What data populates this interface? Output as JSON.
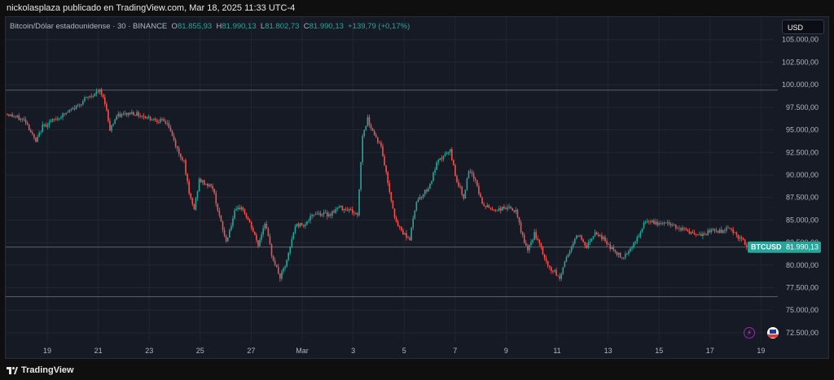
{
  "header": {
    "attribution": "nickolasplaza publicado en TradingView.com, Mar 18, 2025 11:33 UTC-4"
  },
  "legend": {
    "symbol": "Bitcoin/Dólar estadounidense · 30 · BINANCE",
    "o_label": "O",
    "o_value": "81.855,93",
    "h_label": "H",
    "h_value": "81.990,13",
    "l_label": "L",
    "l_value": "81.802,73",
    "c_label": "C",
    "c_value": "81.990,13",
    "change": "+139,79 (+0,17%)"
  },
  "currency_button": "USD",
  "price_tag": {
    "symbol": "BTCUSD",
    "value": "81.990,13"
  },
  "footer": {
    "brand": "TradingView"
  },
  "icons": [
    "flash-icon",
    "us-flag-event-icon",
    "tradingview-logo-icon"
  ],
  "colors": {
    "up": "#26a69a",
    "down": "#ef5350",
    "background": "#161a25",
    "grid": "#232632",
    "axis_text": "#b2b5be"
  },
  "chart_data": {
    "type": "candlestick",
    "title": "",
    "xlabel": "",
    "ylabel": "",
    "ylim": [
      71500,
      107500
    ],
    "x_tick_labels": [
      "19",
      "21",
      "23",
      "25",
      "27",
      "Mar",
      "3",
      "5",
      "7",
      "9",
      "11",
      "13",
      "15",
      "17",
      "19"
    ],
    "y_tick_values": [
      72500,
      75000,
      77500,
      80000,
      82500,
      85000,
      87500,
      90000,
      92500,
      95000,
      97500,
      100000,
      102500,
      105000
    ],
    "y_tick_labels": [
      "72.500,00",
      "75.000,00",
      "77.500,00",
      "80.000,00",
      "82.500,00",
      "85.000,00",
      "87.500,00",
      "90.000,00",
      "92.500,00",
      "95.000,00",
      "97.500,00",
      "100.000,00",
      "102.500,00",
      "105.000,00"
    ],
    "horizontal_lines": [
      99400,
      76500,
      82000
    ],
    "last_close": 81990.13,
    "price_path": [
      [
        0,
        96800
      ],
      [
        1.2,
        96000
      ],
      [
        1.8,
        93600
      ],
      [
        2.2,
        95400
      ],
      [
        3.0,
        96200
      ],
      [
        4.0,
        97300
      ],
      [
        4.8,
        98500
      ],
      [
        5.6,
        99300
      ],
      [
        5.9,
        98100
      ],
      [
        6.2,
        95100
      ],
      [
        6.6,
        96500
      ],
      [
        7.5,
        96900
      ],
      [
        8.6,
        96300
      ],
      [
        9.6,
        95800
      ],
      [
        10.3,
        92300
      ],
      [
        10.6,
        91600
      ],
      [
        10.9,
        87800
      ],
      [
        11.2,
        86200
      ],
      [
        11.5,
        89400
      ],
      [
        12.3,
        88600
      ],
      [
        12.8,
        84600
      ],
      [
        13.1,
        82600
      ],
      [
        13.6,
        85800
      ],
      [
        14.0,
        86500
      ],
      [
        14.6,
        84200
      ],
      [
        15.0,
        82200
      ],
      [
        15.4,
        84800
      ],
      [
        15.8,
        81200
      ],
      [
        16.3,
        78600
      ],
      [
        16.7,
        80400
      ],
      [
        17.2,
        84400
      ],
      [
        17.8,
        84600
      ],
      [
        18.4,
        85800
      ],
      [
        19.2,
        85600
      ],
      [
        19.8,
        86400
      ],
      [
        20.4,
        86200
      ],
      [
        20.9,
        85500
      ],
      [
        21.2,
        94400
      ],
      [
        21.5,
        96200
      ],
      [
        21.9,
        94500
      ],
      [
        22.3,
        93100
      ],
      [
        22.8,
        88200
      ],
      [
        23.2,
        84600
      ],
      [
        23.6,
        83600
      ],
      [
        24.0,
        82900
      ],
      [
        24.4,
        87200
      ],
      [
        24.8,
        87900
      ],
      [
        25.2,
        88900
      ],
      [
        25.6,
        91200
      ],
      [
        26.0,
        92100
      ],
      [
        26.4,
        92600
      ],
      [
        26.8,
        89300
      ],
      [
        27.2,
        87600
      ],
      [
        27.5,
        90300
      ],
      [
        27.9,
        89500
      ],
      [
        28.3,
        86700
      ],
      [
        29.0,
        86100
      ],
      [
        29.8,
        86400
      ],
      [
        30.3,
        85900
      ],
      [
        30.6,
        83800
      ],
      [
        31.0,
        81500
      ],
      [
        31.4,
        83500
      ],
      [
        31.8,
        81800
      ],
      [
        32.2,
        79800
      ],
      [
        32.6,
        79200
      ],
      [
        32.9,
        78500
      ],
      [
        33.2,
        80400
      ],
      [
        33.6,
        82100
      ],
      [
        34.0,
        83400
      ],
      [
        34.5,
        82100
      ],
      [
        35.0,
        83700
      ],
      [
        35.5,
        82900
      ],
      [
        36.0,
        81800
      ],
      [
        36.6,
        80800
      ],
      [
        37.1,
        81900
      ],
      [
        37.6,
        83200
      ],
      [
        38.0,
        84900
      ],
      [
        38.6,
        84600
      ],
      [
        39.2,
        84700
      ],
      [
        39.8,
        84300
      ],
      [
        40.4,
        83900
      ],
      [
        41.0,
        83200
      ],
      [
        41.5,
        83400
      ],
      [
        42.0,
        83900
      ],
      [
        42.5,
        83700
      ],
      [
        42.9,
        84300
      ],
      [
        43.3,
        83500
      ],
      [
        43.8,
        82600
      ],
      [
        44.0,
        82000
      ]
    ]
  }
}
